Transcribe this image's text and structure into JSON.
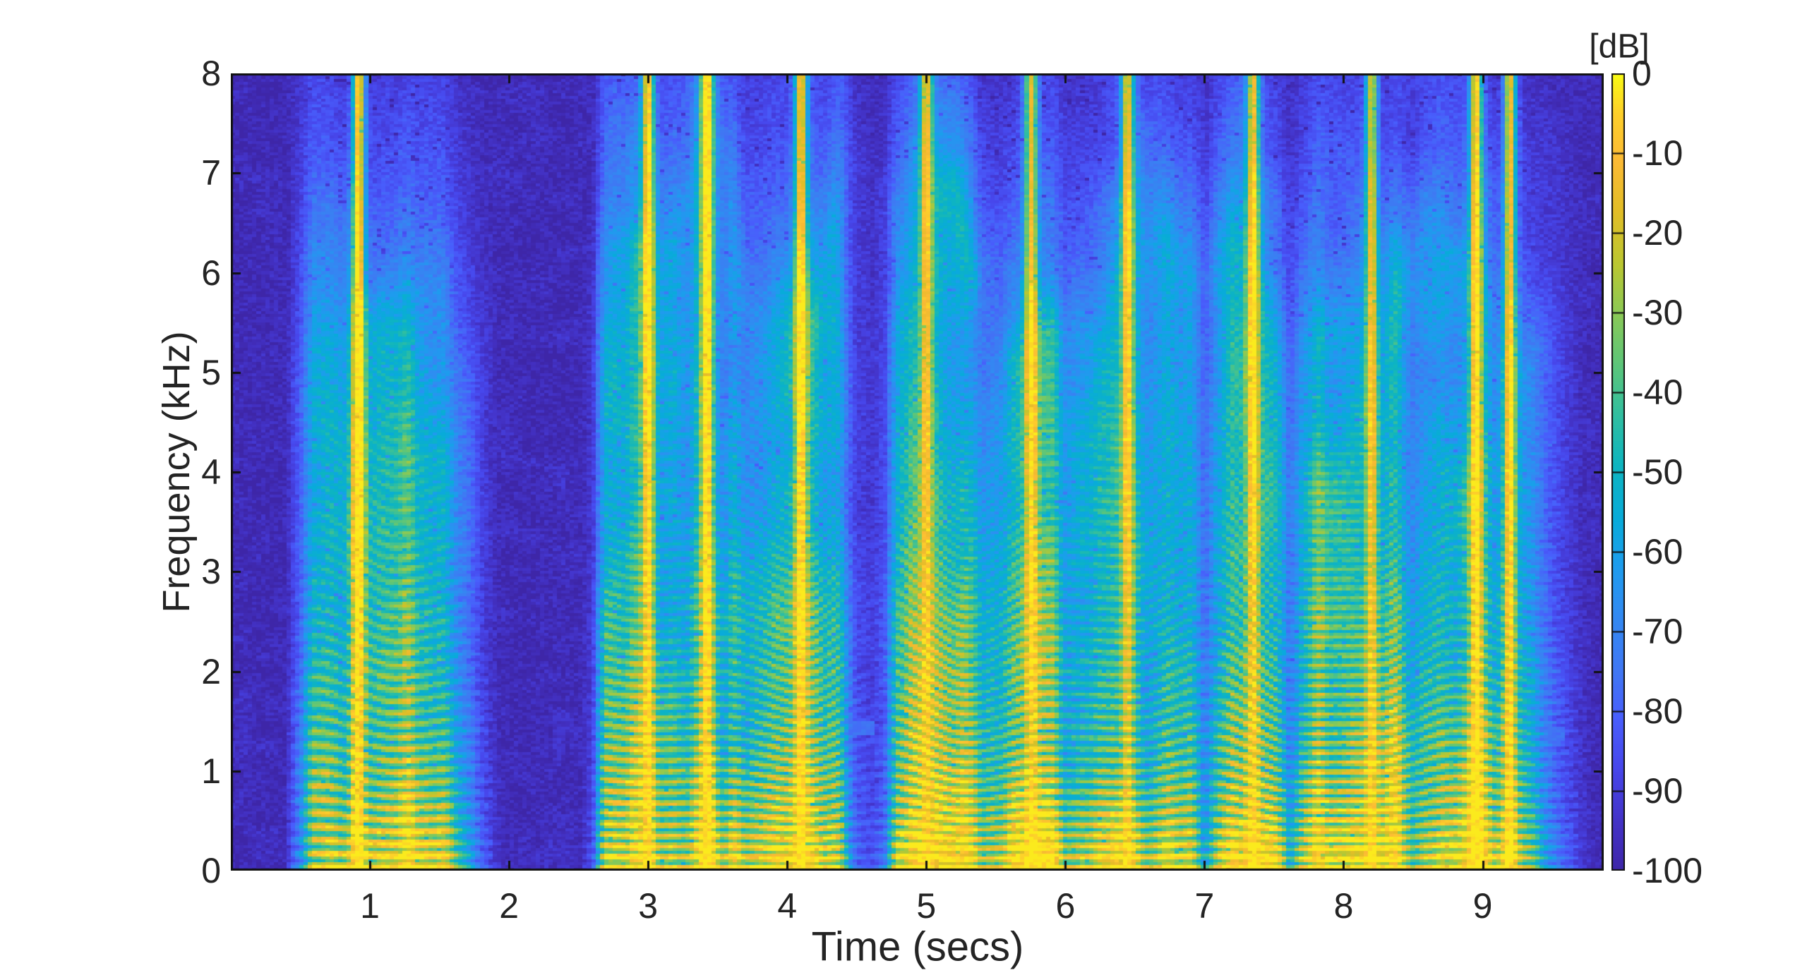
{
  "figure": {
    "background": "#ffffff",
    "text_color": "#242424",
    "axis_color": "#111111"
  },
  "chart_data": {
    "type": "heatmap",
    "subtype": "speech-spectrogram",
    "title": "",
    "xlabel": "Time (secs)",
    "ylabel": "Frequency (kHz)",
    "colorbar_label": "[dB]",
    "xlim": [
      0,
      9.87
    ],
    "ylim": [
      0,
      8
    ],
    "clim": [
      -100,
      0
    ],
    "xticks": [
      1,
      2,
      3,
      4,
      5,
      6,
      7,
      8,
      9
    ],
    "yticks": [
      0,
      1,
      2,
      3,
      4,
      5,
      6,
      7,
      8
    ],
    "colorbar_ticks": [
      0,
      -10,
      -20,
      -30,
      -40,
      -50,
      -60,
      -70,
      -80,
      -90,
      -100
    ],
    "grid": false,
    "legend": "none",
    "colormap": {
      "name": "parula",
      "stops": [
        [
          0.0,
          "#3E26A8"
        ],
        [
          0.06,
          "#4332C6"
        ],
        [
          0.13,
          "#4747EC"
        ],
        [
          0.19,
          "#485EFC"
        ],
        [
          0.25,
          "#4077F3"
        ],
        [
          0.32,
          "#328AF2"
        ],
        [
          0.38,
          "#1E9CEE"
        ],
        [
          0.44,
          "#08ABDA"
        ],
        [
          0.51,
          "#0EB5BF"
        ],
        [
          0.57,
          "#30BEA1"
        ],
        [
          0.63,
          "#59C57C"
        ],
        [
          0.7,
          "#8BC955"
        ],
        [
          0.76,
          "#BAC731"
        ],
        [
          0.83,
          "#E3BD27"
        ],
        [
          0.89,
          "#FBBA35"
        ],
        [
          0.95,
          "#FDCF2A"
        ],
        [
          1.0,
          "#F9FB14"
        ]
      ]
    },
    "silence_db": -97,
    "speech_activity": {
      "dt": 0.1,
      "values": [
        0,
        0,
        0,
        0,
        0.02,
        0.25,
        0.8,
        0.85,
        0.8,
        1,
        0.9,
        0.85,
        0.9,
        0.9,
        0.85,
        0.75,
        0.5,
        0.3,
        0.15,
        0.05,
        0,
        0,
        0,
        0,
        0,
        0,
        0.1,
        0.9,
        1,
        1,
        0.95,
        0.9,
        0.85,
        0.9,
        0.95,
        0.8,
        0.85,
        0.6,
        0.8,
        0.85,
        0.9,
        0.95,
        0.9,
        0.85,
        0.6,
        0.15,
        0.1,
        0.2,
        0.9,
        1,
        0.95,
        0.9,
        0.95,
        0.9,
        0.5,
        0.6,
        0.8,
        0.95,
        0.95,
        0.9,
        0.6,
        0.7,
        0.9,
        0.85,
        0.8,
        0.9,
        0.6,
        0.7,
        0.8,
        0.7,
        0.3,
        0.6,
        0.9,
        0.95,
        0.95,
        0.9,
        0.5,
        0.8,
        0.95,
        1,
        1,
        0.95,
        0.95,
        1,
        0.95,
        0.6,
        0.8,
        0.9,
        0.85,
        0.95,
        0.9,
        0.85,
        0.8,
        0.6,
        0.4,
        0.25,
        0.12,
        0.05,
        0.02,
        0
      ]
    },
    "bright_streaks": [
      0.92,
      3.0,
      3.42,
      4.1,
      5.0,
      5.75,
      6.45,
      7.35,
      8.2,
      8.95,
      9.2
    ],
    "tone_artifacts": [
      {
        "t0": 4.42,
        "t1": 4.62,
        "f_khz": 1.42
      },
      {
        "t0": 9.3,
        "t1": 9.58,
        "f_khz": 1.38
      }
    ]
  }
}
